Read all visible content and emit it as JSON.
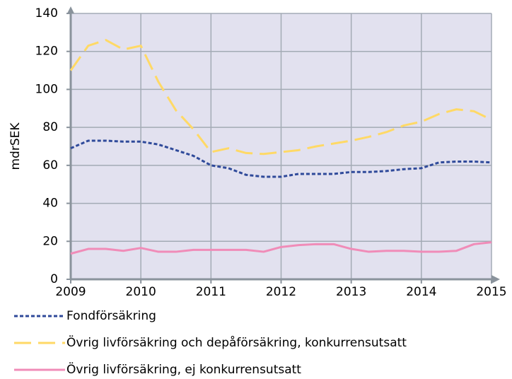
{
  "chart_data": {
    "type": "line",
    "ylabel": "mdrSEK",
    "x": [
      2009,
      2009.25,
      2009.5,
      2009.75,
      2010,
      2010.25,
      2010.5,
      2010.75,
      2011,
      2011.25,
      2011.5,
      2011.75,
      2012,
      2012.25,
      2012.5,
      2012.75,
      2013,
      2013.25,
      2013.5,
      2013.75,
      2014,
      2014.25,
      2014.5,
      2014.75,
      2015
    ],
    "series": [
      {
        "name": "Fondförsäkring",
        "color": "#2f4a9a",
        "style": "dotted",
        "values": [
          69,
          73,
          73,
          72.5,
          72.5,
          71,
          68,
          65,
          60,
          58.5,
          55,
          54,
          54,
          55.5,
          55.5,
          55.5,
          56.5,
          56.5,
          57,
          58,
          58.5,
          61.5,
          62,
          62,
          61.5
        ]
      },
      {
        "name": "Övrig livförsäkring och depåförsäkring, konkurrensutsatt",
        "color": "#ffd966",
        "style": "dashed",
        "values": [
          110,
          123,
          126,
          121,
          123,
          104,
          89,
          79,
          67,
          69,
          66.5,
          66,
          67,
          68,
          70,
          71.5,
          73,
          75,
          77.5,
          81,
          83,
          87,
          89.5,
          88.5,
          84
        ]
      },
      {
        "name": "Övrig livförsäkring, ej konkurrensutsatt",
        "color": "#f08cb8",
        "style": "solid",
        "values": [
          13.5,
          16,
          16,
          15,
          16.5,
          14.5,
          14.5,
          15.5,
          15.5,
          15.5,
          15.5,
          14.5,
          17,
          18,
          18.5,
          18.5,
          16,
          14.5,
          15,
          15,
          14.5,
          14.5,
          15,
          18.5,
          19.5
        ]
      }
    ],
    "xlim": [
      2009,
      2015
    ],
    "xticks": [
      2009,
      2010,
      2011,
      2012,
      2013,
      2014,
      2015
    ],
    "ylim": [
      0,
      140
    ],
    "yticks": [
      0,
      20,
      40,
      60,
      80,
      100,
      120,
      140
    ],
    "grid": true,
    "legend": "bottom"
  }
}
